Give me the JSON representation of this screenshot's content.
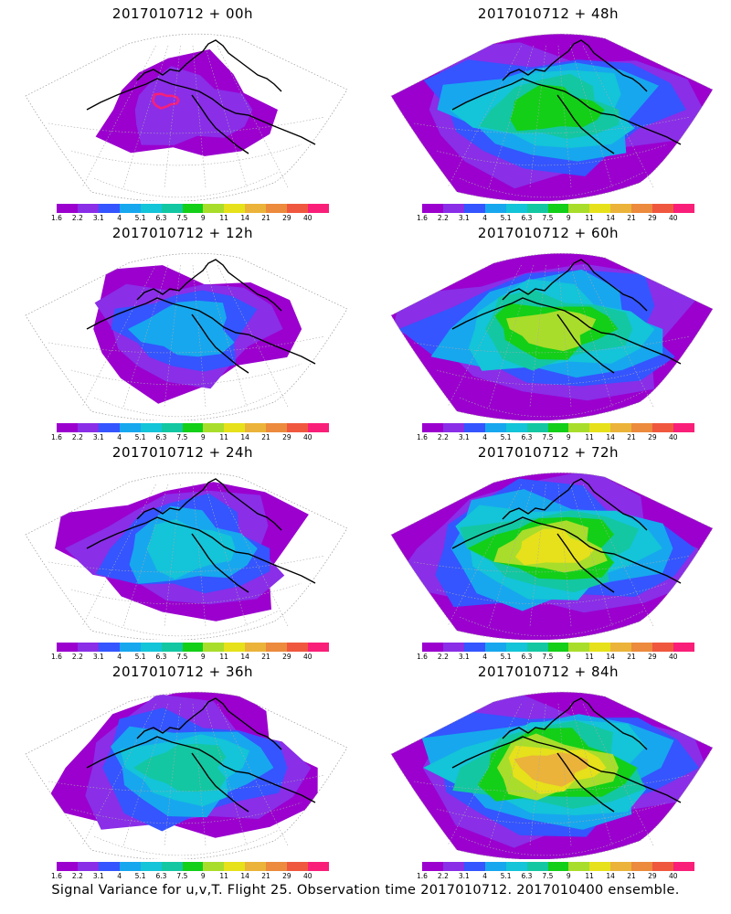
{
  "palette": [
    "#9b00cf",
    "#8a2ee8",
    "#3455ff",
    "#17a7ee",
    "#14c4d8",
    "#13c7a2",
    "#13cf18",
    "#a9dd2b",
    "#e6e11a",
    "#ebb33a",
    "#ec8a3d",
    "#f0573f",
    "#f91f78"
  ],
  "colorbar_labels": [
    "1.6",
    "2.2",
    "3.1",
    "4",
    "5.1",
    "6.3",
    "7.5",
    "9",
    "11",
    "14",
    "21",
    "29",
    "40"
  ],
  "panels": [
    {
      "title": "2017010712 + 00h",
      "level": 0
    },
    {
      "title": "2017010712 + 48h",
      "level": 5
    },
    {
      "title": "2017010712 + 12h",
      "level": 2
    },
    {
      "title": "2017010712 + 60h",
      "level": 6
    },
    {
      "title": "2017010712 + 24h",
      "level": 3
    },
    {
      "title": "2017010712 + 72h",
      "level": 7
    },
    {
      "title": "2017010712 + 36h",
      "level": 4
    },
    {
      "title": "2017010712 + 84h",
      "level": 8
    }
  ],
  "footer": "Signal Variance for u,v,T. Flight 25. Observation time 2017010712. 2017010400 ensemble."
}
